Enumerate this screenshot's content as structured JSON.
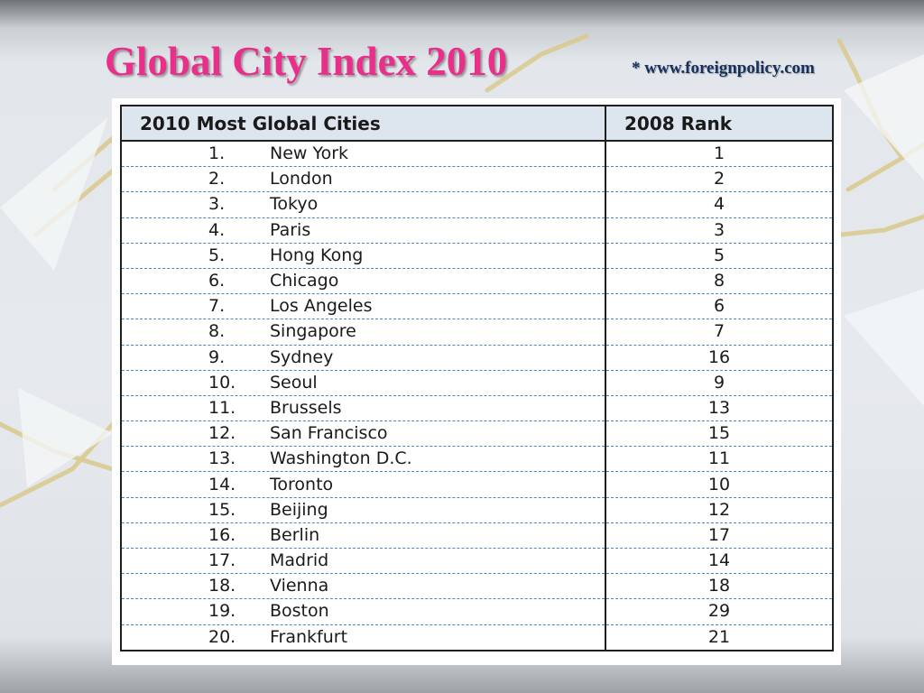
{
  "slide": {
    "title": "Global City Index 2010",
    "source": "* www.foreignpolicy.com"
  },
  "table": {
    "headers": [
      "2010 Most Global Cities",
      "2008 Rank"
    ],
    "rows": [
      {
        "num": "1.",
        "city": "New York",
        "rank_2008": "1"
      },
      {
        "num": "2.",
        "city": "London",
        "rank_2008": "2"
      },
      {
        "num": "3.",
        "city": "Tokyo",
        "rank_2008": "4"
      },
      {
        "num": "4.",
        "city": "Paris",
        "rank_2008": "3"
      },
      {
        "num": "5.",
        "city": "Hong Kong",
        "rank_2008": "5"
      },
      {
        "num": "6.",
        "city": "Chicago",
        "rank_2008": "8"
      },
      {
        "num": "7.",
        "city": "Los Angeles",
        "rank_2008": "6"
      },
      {
        "num": "8.",
        "city": "Singapore",
        "rank_2008": "7"
      },
      {
        "num": "9.",
        "city": "Sydney",
        "rank_2008": "16"
      },
      {
        "num": "10.",
        "city": "Seoul",
        "rank_2008": "9"
      },
      {
        "num": "11.",
        "city": "Brussels",
        "rank_2008": "13"
      },
      {
        "num": "12.",
        "city": "San Francisco",
        "rank_2008": "15"
      },
      {
        "num": "13.",
        "city": "Washington D.C.",
        "rank_2008": "11"
      },
      {
        "num": "14.",
        "city": "Toronto",
        "rank_2008": "10"
      },
      {
        "num": "15.",
        "city": "Beijing",
        "rank_2008": "12"
      },
      {
        "num": "16.",
        "city": "Berlin",
        "rank_2008": "17"
      },
      {
        "num": "17.",
        "city": "Madrid",
        "rank_2008": "14"
      },
      {
        "num": "18.",
        "city": "Vienna",
        "rank_2008": "18"
      },
      {
        "num": "19.",
        "city": "Boston",
        "rank_2008": "29"
      },
      {
        "num": "20.",
        "city": "Frankfurt",
        "rank_2008": "21"
      }
    ]
  },
  "colors": {
    "title": "#e8308a",
    "source": "#17315e",
    "header_fill": "#dde6ef",
    "row_divider": "#4a86c8"
  }
}
